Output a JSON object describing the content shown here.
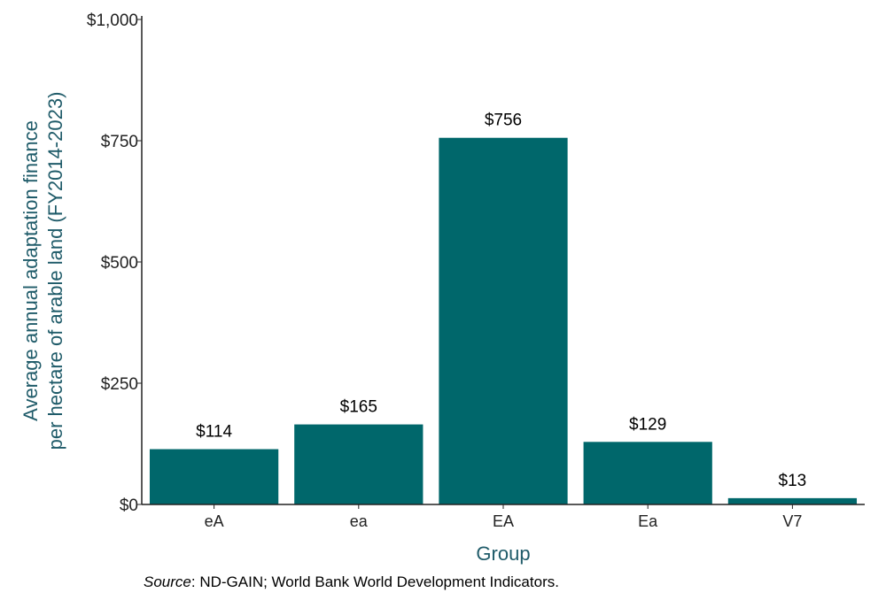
{
  "chart_data": {
    "type": "bar",
    "categories": [
      "eA",
      "ea",
      "EA",
      "Ea",
      "V7"
    ],
    "values": [
      114,
      165,
      756,
      129,
      13
    ],
    "value_labels": [
      "$114",
      "$165",
      "$756",
      "$129",
      "$13"
    ],
    "ylabel_line1": "Average annual adaptation finance",
    "ylabel_line2": "per hectare of arable land (FY2014-2023)",
    "xlabel": "Group",
    "ylim": [
      0,
      1000
    ],
    "yticks": [
      0,
      250,
      500,
      750,
      1000
    ],
    "ytick_labels": [
      "$0",
      "$250",
      "$500",
      "$750",
      "$1,000"
    ],
    "grid": false,
    "bar_color": "#00676B",
    "axis_label_color": "#1F5B69"
  },
  "source": {
    "prefix": "Source",
    "text": ": ND-GAIN; World Bank World Development Indicators."
  }
}
